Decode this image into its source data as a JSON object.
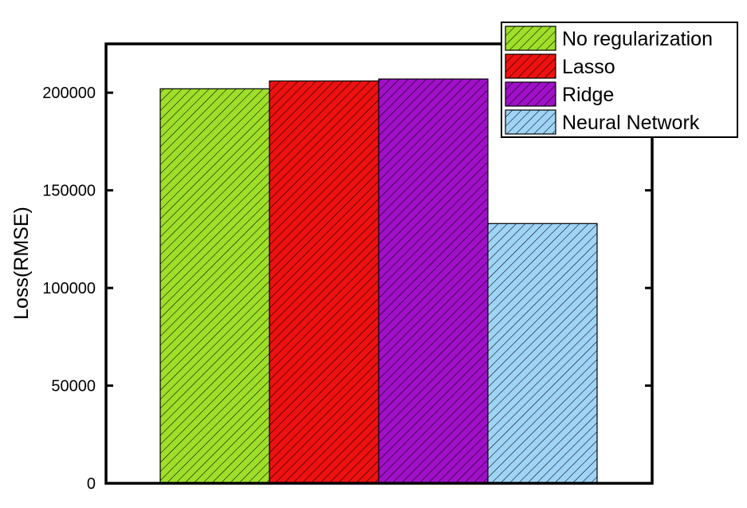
{
  "chart_data": {
    "type": "bar",
    "title": "",
    "xlabel": "",
    "ylabel": "Loss(RMSE)",
    "ylim": [
      0,
      225000
    ],
    "yticks": [
      0,
      50000,
      100000,
      150000,
      200000
    ],
    "grid": false,
    "legend_position": "top-right",
    "bar_pattern": "diagonal-hatch",
    "series": [
      {
        "name": "No regularization",
        "values": [
          202000
        ],
        "color": "#9fdf2a"
      },
      {
        "name": "Lasso",
        "values": [
          206000
        ],
        "color": "#ee1111"
      },
      {
        "name": "Ridge",
        "values": [
          207000
        ],
        "color": "#a010c8"
      },
      {
        "name": "Neural Network",
        "values": [
          133000
        ],
        "color": "#9fd4f7"
      }
    ]
  }
}
